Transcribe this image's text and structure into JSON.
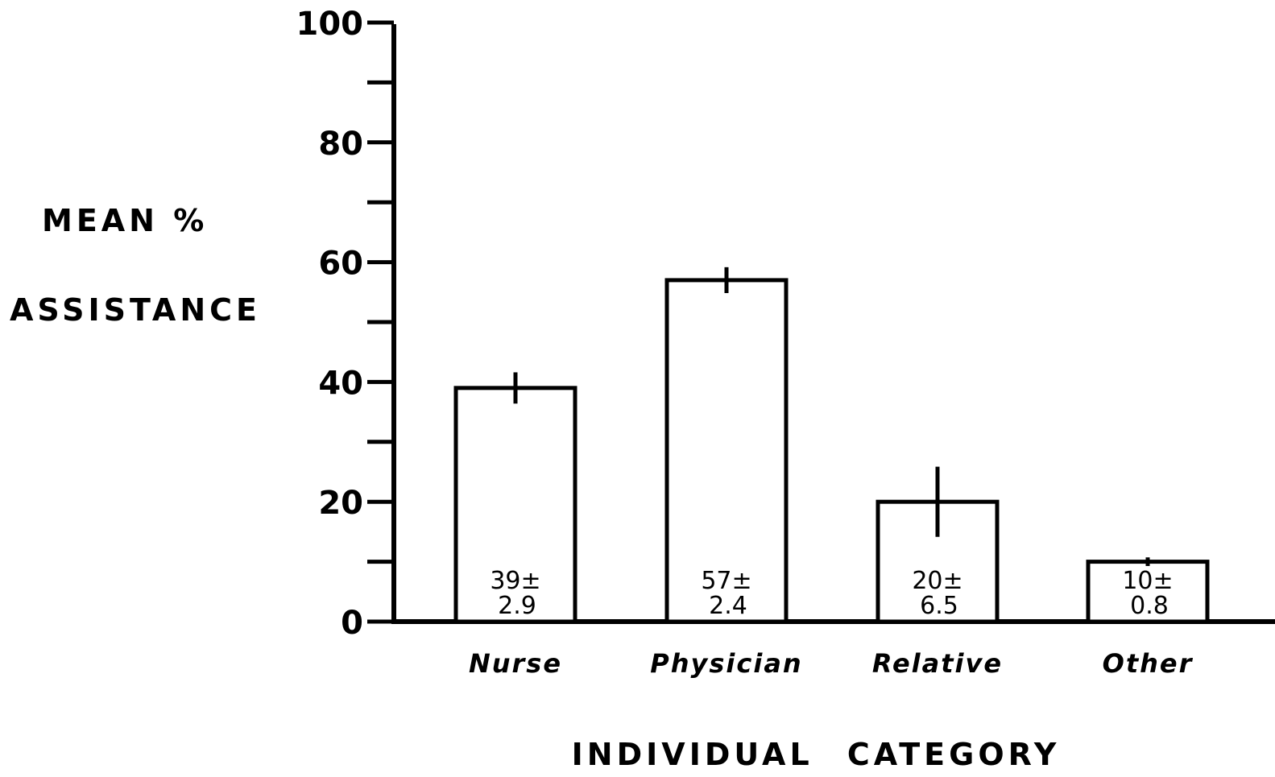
{
  "chart_data": {
    "type": "bar",
    "categories": [
      "Nurse",
      "Physician",
      "Relative",
      "Other"
    ],
    "values": [
      39,
      57,
      20,
      10
    ],
    "errors": [
      2.9,
      2.4,
      6.5,
      0.8
    ],
    "value_labels": [
      {
        "mean": "39±",
        "err": "2.9"
      },
      {
        "mean": "57±",
        "err": "2.4"
      },
      {
        "mean": "20±",
        "err": "6.5"
      },
      {
        "mean": "10±",
        "err": "0.8"
      }
    ],
    "ylabel_line1": "MEAN %",
    "ylabel_line2": "ASSISTANCE",
    "xlabel": "INDIVIDUAL CATEGORY",
    "ylim": [
      0,
      100
    ],
    "y_ticks_major": [
      0,
      20,
      40,
      60,
      80,
      100
    ],
    "y_ticks_minor": [
      10,
      30,
      50,
      70,
      90
    ],
    "y_tick_labels": [
      "0",
      "20",
      "40",
      "60",
      "80",
      "100"
    ],
    "colors": {
      "bar_fill": "#ffffff",
      "stroke": "#000000"
    }
  }
}
